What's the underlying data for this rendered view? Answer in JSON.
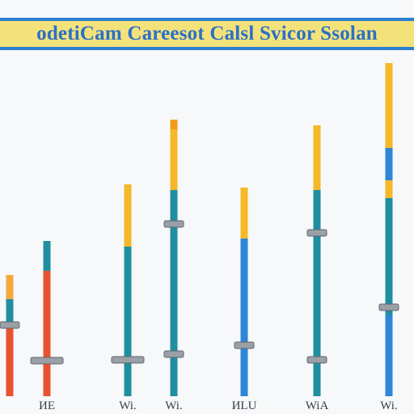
{
  "chart_data": {
    "type": "bar",
    "title": "odetiCam Careesot Calsl Svicor Ssolan",
    "xlabel": "",
    "ylabel": "",
    "categories": [
      "",
      "ИE",
      "",
      "Wi.",
      "Wi.",
      "ИLU",
      "WiA",
      "Wi."
    ],
    "segments": [
      [
        {
          "color": "#e8522e",
          "value": 85
        },
        {
          "color": "#1f8fa0",
          "value": 35
        },
        {
          "color": "#f2a93b",
          "value": 30
        }
      ],
      [
        {
          "color": "#e8522e",
          "value": 155
        },
        {
          "color": "#1f8fa0",
          "value": 37
        }
      ],
      [],
      [
        {
          "color": "#1f8fa0",
          "value": 185
        },
        {
          "color": "#f5b829",
          "value": 77
        }
      ],
      [
        {
          "color": "#1f8fa0",
          "value": 255
        },
        {
          "color": "#f5b829",
          "value": 75
        },
        {
          "color": "#f29a1e",
          "value": 12
        }
      ],
      [
        {
          "color": "#2e86d6",
          "value": 195
        },
        {
          "color": "#f5b829",
          "value": 63
        }
      ],
      [
        {
          "color": "#1f8fa0",
          "value": 255
        },
        {
          "color": "#f5b829",
          "value": 80
        }
      ],
      [
        {
          "color": "#2e86d6",
          "value": 100
        },
        {
          "color": "#1f8fa0",
          "value": 145
        },
        {
          "color": "#f5b829",
          "value": 22
        },
        {
          "color": "#2e86d6",
          "value": 40
        },
        {
          "color": "#f5b829",
          "value": 105
        }
      ]
    ],
    "markers": [
      [
        88
      ],
      [
        44
      ],
      [],
      [
        45
      ],
      [
        52,
        213
      ],
      [
        63
      ],
      [
        45,
        202
      ],
      [
        110
      ]
    ],
    "ylim": [
      0,
      420
    ],
    "grid": false,
    "legend": "none"
  }
}
